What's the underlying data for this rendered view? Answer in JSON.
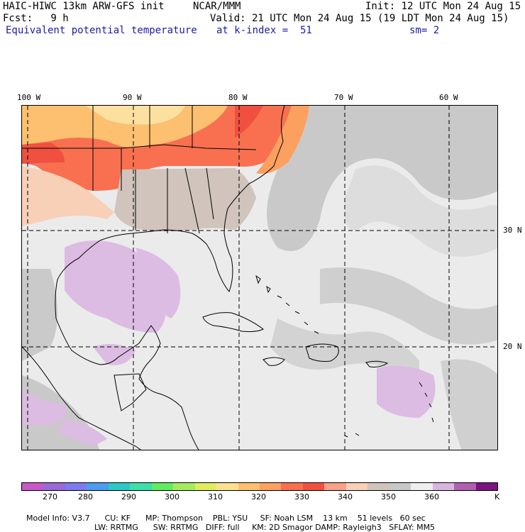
{
  "header": {
    "model_title": "HAIC-HIWC 13km ARW-GFS init",
    "org": "NCAR/MMM",
    "init": "Init: 12 UTC Mon 24 Aug 15",
    "fcst": "Fcst:   9 h",
    "valid": "Valid: 21 UTC Mon 24 Aug 15 (19 LDT Mon 24 Aug 15)",
    "field": "Equivalent potential temperature",
    "level": "at k-index =  51",
    "smooth": "sm= 2"
  },
  "map": {
    "lon_labels": [
      "100 W",
      "90 W",
      "80 W",
      "70 W",
      "60 W"
    ],
    "lat_labels": [
      "30 N",
      "20 N"
    ],
    "grid_style": "dashed",
    "region": "Gulf of Mexico, Caribbean, southeastern United States"
  },
  "colorbar": {
    "colors": [
      "#c858c8",
      "#9a6ad6",
      "#7c7cf0",
      "#4c9cf0",
      "#2cc8c8",
      "#3ce0a8",
      "#60ec60",
      "#a4ec60",
      "#e0ec60",
      "#fce090",
      "#fcc070",
      "#fca060",
      "#f87050",
      "#f05040",
      "#f8a088",
      "#f8d0b8",
      "#d0c4bc",
      "#c8c8c8",
      "#eeeeee",
      "#d8b4e0",
      "#b060b0",
      "#7a1480"
    ],
    "tick_labels": [
      "270",
      "280",
      "290",
      "300",
      "310",
      "320",
      "330",
      "340",
      "350",
      "360"
    ],
    "unit": "K"
  },
  "model_info": {
    "line1": [
      "Model Info: V3.7",
      "CU: KF",
      "MP: Thompson",
      "PBL: YSU",
      "SF: Noah LSM",
      "13 km",
      "51 levels",
      "60 sec"
    ],
    "line2": [
      "LW: RRTMG",
      "SW: RRTMG",
      "DIFF: full",
      "KM: 2D Smagor",
      "DAMP: Rayleigh3",
      "SFLAY: MM5"
    ]
  }
}
